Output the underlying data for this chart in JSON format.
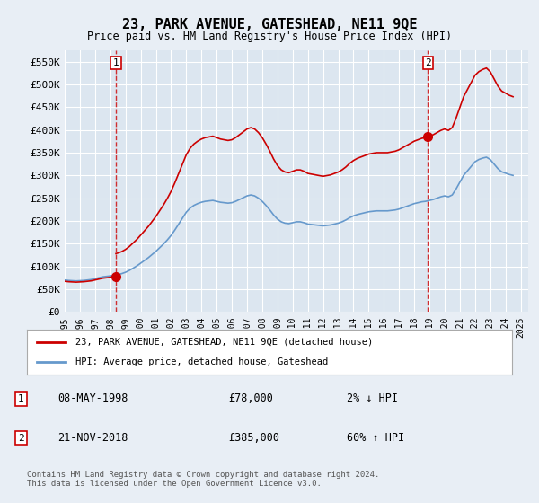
{
  "title": "23, PARK AVENUE, GATESHEAD, NE11 9QE",
  "subtitle": "Price paid vs. HM Land Registry's House Price Index (HPI)",
  "legend_label_red": "23, PARK AVENUE, GATESHEAD, NE11 9QE (detached house)",
  "legend_label_blue": "HPI: Average price, detached house, Gateshead",
  "footer": "Contains HM Land Registry data © Crown copyright and database right 2024.\nThis data is licensed under the Open Government Licence v3.0.",
  "sale1_date": "08-MAY-1998",
  "sale1_price": 78000,
  "sale1_hpi": "2% ↓ HPI",
  "sale2_date": "21-NOV-2018",
  "sale2_price": 385000,
  "sale2_hpi": "60% ↑ HPI",
  "bg_color": "#e8eef5",
  "plot_bg_color": "#dce6f0",
  "red_color": "#cc0000",
  "blue_color": "#6699cc",
  "grid_color": "#ffffff",
  "ylim": [
    0,
    575000
  ],
  "yticks": [
    0,
    50000,
    100000,
    150000,
    200000,
    250000,
    300000,
    350000,
    400000,
    450000,
    500000,
    550000
  ],
  "ytick_labels": [
    "£0",
    "£50K",
    "£100K",
    "£150K",
    "£200K",
    "£250K",
    "£300K",
    "£350K",
    "£400K",
    "£450K",
    "£500K",
    "£550K"
  ],
  "xlim_start": 1995.0,
  "xlim_end": 2025.5,
  "hpi_years": [
    1995.0,
    1995.25,
    1995.5,
    1995.75,
    1996.0,
    1996.25,
    1996.5,
    1996.75,
    1997.0,
    1997.25,
    1997.5,
    1997.75,
    1998.0,
    1998.25,
    1998.5,
    1998.75,
    1999.0,
    1999.25,
    1999.5,
    1999.75,
    2000.0,
    2000.25,
    2000.5,
    2000.75,
    2001.0,
    2001.25,
    2001.5,
    2001.75,
    2002.0,
    2002.25,
    2002.5,
    2002.75,
    2003.0,
    2003.25,
    2003.5,
    2003.75,
    2004.0,
    2004.25,
    2004.5,
    2004.75,
    2005.0,
    2005.25,
    2005.5,
    2005.75,
    2006.0,
    2006.25,
    2006.5,
    2006.75,
    2007.0,
    2007.25,
    2007.5,
    2007.75,
    2008.0,
    2008.25,
    2008.5,
    2008.75,
    2009.0,
    2009.25,
    2009.5,
    2009.75,
    2010.0,
    2010.25,
    2010.5,
    2010.75,
    2011.0,
    2011.25,
    2011.5,
    2011.75,
    2012.0,
    2012.25,
    2012.5,
    2012.75,
    2013.0,
    2013.25,
    2013.5,
    2013.75,
    2014.0,
    2014.25,
    2014.5,
    2014.75,
    2015.0,
    2015.25,
    2015.5,
    2015.75,
    2016.0,
    2016.25,
    2016.5,
    2016.75,
    2017.0,
    2017.25,
    2017.5,
    2017.75,
    2018.0,
    2018.25,
    2018.5,
    2018.75,
    2019.0,
    2019.25,
    2019.5,
    2019.75,
    2020.0,
    2020.25,
    2020.5,
    2020.75,
    2021.0,
    2021.25,
    2021.5,
    2021.75,
    2022.0,
    2022.25,
    2022.5,
    2022.75,
    2023.0,
    2023.25,
    2023.5,
    2023.75,
    2024.0,
    2024.25,
    2024.5
  ],
  "hpi_values": [
    70000,
    69000,
    68500,
    68000,
    68500,
    69000,
    70000,
    71000,
    73000,
    75000,
    77000,
    78000,
    79000,
    80500,
    82000,
    84000,
    87000,
    91000,
    96000,
    101000,
    107000,
    113000,
    119000,
    126000,
    133000,
    141000,
    149000,
    158000,
    168000,
    180000,
    193000,
    206000,
    219000,
    228000,
    234000,
    238000,
    241000,
    243000,
    244000,
    245000,
    243000,
    241000,
    240000,
    239000,
    240000,
    243000,
    247000,
    251000,
    255000,
    257000,
    255000,
    250000,
    243000,
    234000,
    224000,
    213000,
    204000,
    198000,
    195000,
    194000,
    196000,
    198000,
    198000,
    196000,
    193000,
    192000,
    191000,
    190000,
    189000,
    190000,
    191000,
    193000,
    195000,
    198000,
    202000,
    207000,
    211000,
    214000,
    216000,
    218000,
    220000,
    221000,
    222000,
    222000,
    222000,
    222000,
    223000,
    224000,
    226000,
    229000,
    232000,
    235000,
    238000,
    240000,
    242000,
    243000,
    245000,
    247000,
    250000,
    253000,
    255000,
    253000,
    257000,
    270000,
    285000,
    300000,
    310000,
    320000,
    330000,
    335000,
    338000,
    340000,
    335000,
    325000,
    315000,
    308000,
    305000,
    302000,
    300000
  ],
  "sale1_x": 1998.37,
  "sale1_y": 78000,
  "sale2_x": 2018.9,
  "sale2_y": 385000,
  "xticks": [
    1995,
    1996,
    1997,
    1998,
    1999,
    2000,
    2001,
    2002,
    2003,
    2004,
    2005,
    2006,
    2007,
    2008,
    2009,
    2010,
    2011,
    2012,
    2013,
    2014,
    2015,
    2016,
    2017,
    2018,
    2019,
    2020,
    2021,
    2022,
    2023,
    2024,
    2025
  ]
}
